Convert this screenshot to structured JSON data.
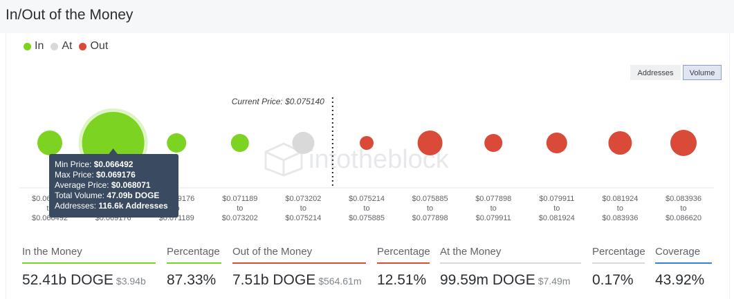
{
  "page_title": "In/Out of the Money",
  "legend": [
    {
      "label": "In",
      "color": "#7dd321"
    },
    {
      "label": "At",
      "color": "#d9d9d9"
    },
    {
      "label": "Out",
      "color": "#d94b38"
    }
  ],
  "toggle": {
    "addresses": "Addresses",
    "volume": "Volume",
    "selected": "Volume"
  },
  "watermark": "intotheblock",
  "chart_data": {
    "type": "scatter",
    "encoding": "bubble size = volume",
    "current_price_label": "Current Price: $0.075140",
    "current_price": 0.07514,
    "bins": [
      {
        "from": "$0.064479",
        "to_word": "to",
        "to": "$0.066492",
        "status": "in",
        "size": 18
      },
      {
        "from": "$0.066492",
        "to_word": "to",
        "to": "$0.069176",
        "status": "in",
        "size": 45
      },
      {
        "from": "$0.069176",
        "to_word": "to",
        "to": "$0.071189",
        "status": "in",
        "size": 14
      },
      {
        "from": "$0.071189",
        "to_word": "to",
        "to": "$0.073202",
        "status": "in",
        "size": 13
      },
      {
        "from": "$0.073202",
        "to_word": "to",
        "to": "$0.075214",
        "status": "at",
        "size": 16
      },
      {
        "from": "$0.075214",
        "to_word": "to",
        "to": "$0.075885",
        "status": "out",
        "size": 10
      },
      {
        "from": "$0.075885",
        "to_word": "to",
        "to": "$0.077898",
        "status": "out",
        "size": 18
      },
      {
        "from": "$0.077898",
        "to_word": "to",
        "to": "$0.079911",
        "status": "out",
        "size": 13
      },
      {
        "from": "$0.079911",
        "to_word": "to",
        "to": "$0.081924",
        "status": "out",
        "size": 15
      },
      {
        "from": "$0.081924",
        "to_word": "to",
        "to": "$0.083936",
        "status": "out",
        "size": 17
      },
      {
        "from": "$0.083936",
        "to_word": "to",
        "to": "$0.086620",
        "status": "out",
        "size": 19
      }
    ],
    "highlighted_bin": 1
  },
  "tooltip": {
    "min_label": "Min Price:",
    "min_value": "$0.066492",
    "max_label": "Max Price:",
    "max_value": "$0.069176",
    "avg_label": "Average Price:",
    "avg_value": "$0.068071",
    "vol_label": "Total Volume:",
    "vol_value": "47.09b DOGE",
    "addr_label": "Addresses:",
    "addr_value": "116.6k Addresses"
  },
  "stats": [
    {
      "label": "In the Money",
      "value": "52.41b DOGE",
      "sub": "$3.94b",
      "color": "#7dd321"
    },
    {
      "label": "Percentage",
      "value": "87.33%",
      "sub": "",
      "color": "#7dd321"
    },
    {
      "label": "Out of the Money",
      "value": "7.51b DOGE",
      "sub": "$564.61m",
      "color": "#d94b38"
    },
    {
      "label": "Percentage",
      "value": "12.51%",
      "sub": "",
      "color": "#d94b38"
    },
    {
      "label": "At the Money",
      "value": "99.59m DOGE",
      "sub": "$7.49m",
      "color": "#d9d9d9"
    },
    {
      "label": "Percentage",
      "value": "0.17%",
      "sub": "",
      "color": "#d9d9d9"
    },
    {
      "label": "Coverage",
      "value": "43.92%",
      "sub": "",
      "color": "#3b7ddd"
    }
  ]
}
